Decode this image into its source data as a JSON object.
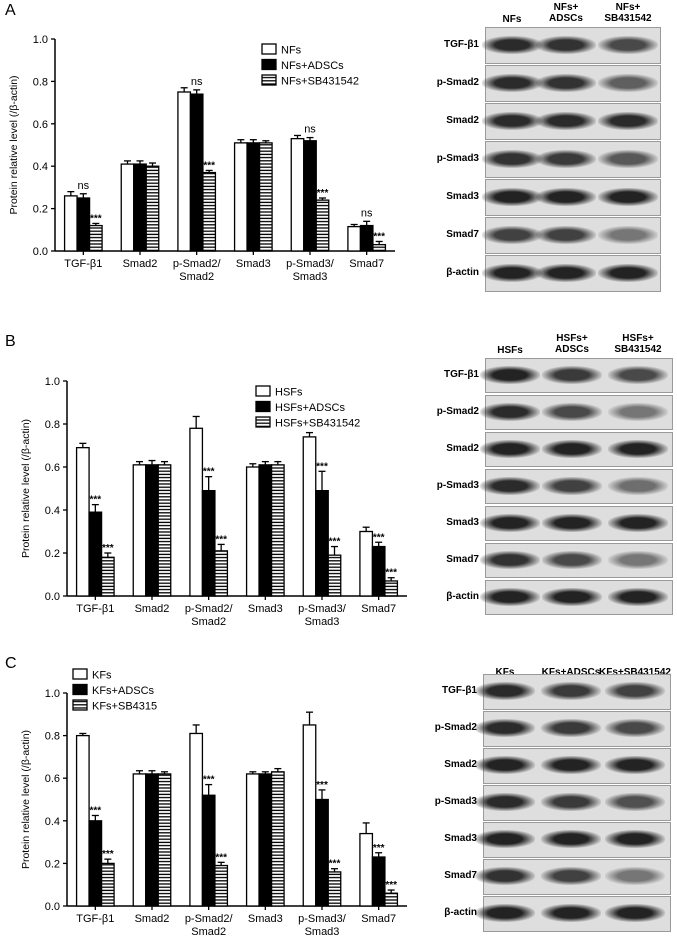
{
  "panels": [
    {
      "letter": "A",
      "chart_data": {
        "type": "bar",
        "ylabel": "Protein relative level (/β-actin)",
        "ylim": [
          0,
          1.0
        ],
        "yticks": [
          "0.0",
          "0.2",
          "0.4",
          "0.6",
          "0.8",
          "1.0"
        ],
        "categories": [
          "TGF-β1",
          "Smad2",
          "p-Smad2/\nSmad2",
          "Smad3",
          "p-Smad3/\nSmad3",
          "Smad7"
        ],
        "series": [
          {
            "name": "NFs",
            "style": "white",
            "values": [
              0.26,
              0.41,
              0.75,
              0.51,
              0.53,
              0.115
            ],
            "errors": [
              0.02,
              0.015,
              0.02,
              0.015,
              0.015,
              0.01
            ]
          },
          {
            "name": "NFs+ADSCs",
            "style": "black",
            "values": [
              0.25,
              0.41,
              0.74,
              0.51,
              0.52,
              0.12
            ],
            "errors": [
              0.02,
              0.015,
              0.02,
              0.015,
              0.015,
              0.02
            ]
          },
          {
            "name": "NFs+SB431542",
            "style": "hatched",
            "values": [
              0.12,
              0.4,
              0.37,
              0.51,
              0.24,
              0.03
            ],
            "errors": [
              0.01,
              0.015,
              0.01,
              0.01,
              0.01,
              0.015
            ]
          }
        ],
        "annotations": [
          {
            "category": 0,
            "series": 1,
            "text": "ns"
          },
          {
            "category": 0,
            "series": 2,
            "text": "***"
          },
          {
            "category": 2,
            "series": 1,
            "text": "ns"
          },
          {
            "category": 2,
            "series": 2,
            "text": "***"
          },
          {
            "category": 4,
            "series": 1,
            "text": "ns"
          },
          {
            "category": 4,
            "series": 2,
            "text": "***"
          },
          {
            "category": 5,
            "series": 1,
            "text": "ns"
          },
          {
            "category": 5,
            "series": 2,
            "text": "***"
          }
        ],
        "legend_position": "top-right"
      },
      "blot": {
        "headers": [
          "NFs",
          "NFs+\nADSCs",
          "NFs+\nSB431542"
        ],
        "rows": [
          "TGF-β1",
          "p-Smad2",
          "Smad2",
          "p-Smad3",
          "Smad3",
          "Smad7",
          "β-actin"
        ]
      }
    },
    {
      "letter": "B",
      "chart_data": {
        "type": "bar",
        "ylabel": "Protein relative level (/β-actin)",
        "ylim": [
          0,
          1.0
        ],
        "yticks": [
          "0.0",
          "0.2",
          "0.4",
          "0.6",
          "0.8",
          "1.0"
        ],
        "categories": [
          "TGF-β1",
          "Smad2",
          "p-Smad2/\nSmad2",
          "Smad3",
          "p-Smad3/\nSmad3",
          "Smad7"
        ],
        "series": [
          {
            "name": "HSFs",
            "style": "white",
            "values": [
              0.69,
              0.61,
              0.78,
              0.6,
              0.74,
              0.3
            ],
            "errors": [
              0.02,
              0.015,
              0.055,
              0.015,
              0.02,
              0.02
            ]
          },
          {
            "name": "HSFs+ADSCs",
            "style": "black",
            "values": [
              0.39,
              0.61,
              0.49,
              0.61,
              0.49,
              0.23
            ],
            "errors": [
              0.035,
              0.02,
              0.065,
              0.015,
              0.09,
              0.02
            ]
          },
          {
            "name": "HSFs+SB431542",
            "style": "hatched",
            "values": [
              0.18,
              0.61,
              0.21,
              0.61,
              0.19,
              0.07
            ],
            "errors": [
              0.02,
              0.015,
              0.03,
              0.015,
              0.04,
              0.015
            ]
          }
        ],
        "annotations": [
          {
            "category": 0,
            "series": 1,
            "text": "***"
          },
          {
            "category": 0,
            "series": 2,
            "text": "***"
          },
          {
            "category": 2,
            "series": 1,
            "text": "***"
          },
          {
            "category": 2,
            "series": 2,
            "text": "***"
          },
          {
            "category": 4,
            "series": 1,
            "text": "***"
          },
          {
            "category": 4,
            "series": 2,
            "text": "***"
          },
          {
            "category": 5,
            "series": 1,
            "text": "***"
          },
          {
            "category": 5,
            "series": 2,
            "text": "***"
          }
        ],
        "legend_position": "top-right"
      },
      "blot": {
        "headers": [
          "HSFs",
          "HSFs+\nADSCs",
          "HSFs+\nSB431542"
        ],
        "rows": [
          "TGF-β1",
          "p-Smad2",
          "Smad2",
          "p-Smad3",
          "Smad3",
          "Smad7",
          "β-actin"
        ]
      }
    },
    {
      "letter": "C",
      "chart_data": {
        "type": "bar",
        "ylabel": "Protein relative level (/β-actin)",
        "ylim": [
          0,
          1.0
        ],
        "yticks": [
          "0.0",
          "0.2",
          "0.4",
          "0.6",
          "0.8",
          "1.0"
        ],
        "categories": [
          "TGF-β1",
          "Smad2",
          "p-Smad2/\nSmad2",
          "Smad3",
          "p-Smad3/\nSmad3",
          "Smad7"
        ],
        "series": [
          {
            "name": "KFs",
            "style": "white",
            "values": [
              0.8,
              0.62,
              0.81,
              0.62,
              0.85,
              0.34
            ],
            "errors": [
              0.01,
              0.015,
              0.04,
              0.01,
              0.06,
              0.05
            ]
          },
          {
            "name": "KFs+ADSCs",
            "style": "black",
            "values": [
              0.4,
              0.62,
              0.52,
              0.62,
              0.5,
              0.23
            ],
            "errors": [
              0.025,
              0.015,
              0.05,
              0.01,
              0.045,
              0.02
            ]
          },
          {
            "name": "KFs+SB4315",
            "style": "hatched",
            "values": [
              0.2,
              0.62,
              0.19,
              0.63,
              0.16,
              0.06
            ],
            "errors": [
              0.02,
              0.01,
              0.015,
              0.015,
              0.015,
              0.015
            ]
          }
        ],
        "annotations": [
          {
            "category": 0,
            "series": 1,
            "text": "***"
          },
          {
            "category": 0,
            "series": 2,
            "text": "***"
          },
          {
            "category": 2,
            "series": 1,
            "text": "***"
          },
          {
            "category": 2,
            "series": 2,
            "text": "***"
          },
          {
            "category": 4,
            "series": 1,
            "text": "***"
          },
          {
            "category": 4,
            "series": 2,
            "text": "***"
          },
          {
            "category": 5,
            "series": 1,
            "text": "***"
          },
          {
            "category": 5,
            "series": 2,
            "text": "***"
          }
        ],
        "legend_position": "top-left"
      },
      "blot": {
        "headers": [
          "KFs",
          "KFs+ADSCs",
          "KFs+SB431542"
        ],
        "rows": [
          "TGF-β1",
          "p-Smad2",
          "Smad2",
          "p-Smad3",
          "Smad3",
          "Smad7",
          "β-actin"
        ]
      }
    }
  ],
  "band_intensity": [
    [
      [
        0.85,
        0.8,
        0.65
      ],
      [
        0.85,
        0.8,
        0.5
      ],
      [
        0.85,
        0.85,
        0.85
      ],
      [
        0.8,
        0.75,
        0.55
      ],
      [
        0.9,
        0.9,
        0.9
      ],
      [
        0.7,
        0.7,
        0.35
      ],
      [
        0.9,
        0.9,
        0.9
      ]
    ],
    [
      [
        0.9,
        0.75,
        0.65
      ],
      [
        0.85,
        0.65,
        0.35
      ],
      [
        0.9,
        0.9,
        0.9
      ],
      [
        0.85,
        0.7,
        0.4
      ],
      [
        0.9,
        0.9,
        0.9
      ],
      [
        0.8,
        0.65,
        0.35
      ],
      [
        0.9,
        0.9,
        0.9
      ]
    ],
    [
      [
        0.85,
        0.75,
        0.7
      ],
      [
        0.85,
        0.75,
        0.65
      ],
      [
        0.9,
        0.9,
        0.9
      ],
      [
        0.85,
        0.75,
        0.6
      ],
      [
        0.9,
        0.9,
        0.9
      ],
      [
        0.8,
        0.7,
        0.35
      ],
      [
        0.9,
        0.9,
        0.9
      ]
    ]
  ]
}
